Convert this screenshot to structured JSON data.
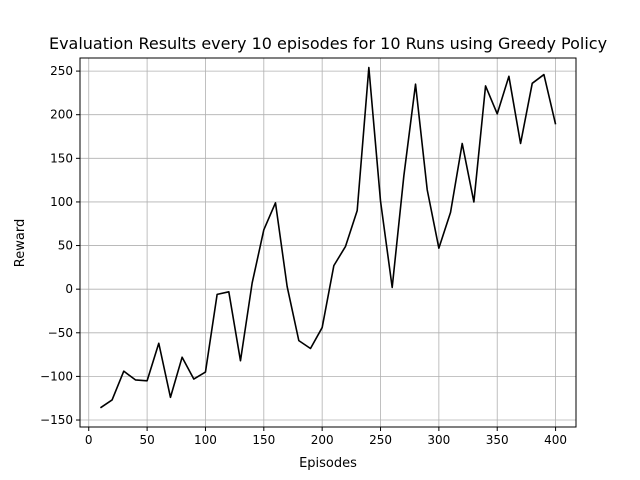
{
  "chart_data": {
    "type": "line",
    "title": "Evaluation Results every 10 episodes for 10 Runs using Greedy Policy",
    "xlabel": "Episodes",
    "ylabel": "Reward",
    "xlim": [
      -7.5,
      417.5
    ],
    "ylim": [
      -158,
      265
    ],
    "xticks": [
      0,
      50,
      100,
      150,
      200,
      250,
      300,
      350,
      400
    ],
    "yticks": [
      -150,
      -100,
      -50,
      0,
      50,
      100,
      150,
      200,
      250
    ],
    "grid": true,
    "series": [
      {
        "color": "#000000",
        "x": [
          10,
          20,
          30,
          40,
          50,
          60,
          70,
          80,
          90,
          100,
          110,
          120,
          130,
          140,
          150,
          160,
          170,
          180,
          190,
          200,
          210,
          220,
          230,
          240,
          250,
          260,
          270,
          280,
          290,
          300,
          310,
          320,
          330,
          340,
          350,
          360,
          370,
          380,
          390,
          400
        ],
        "y": [
          -136,
          -127,
          -94,
          -104,
          -105,
          -62,
          -124,
          -78,
          -103,
          -95,
          -6,
          -3,
          -82,
          7,
          68,
          99,
          3,
          -59,
          -68,
          -44,
          27,
          49,
          90,
          254,
          101,
          2,
          130,
          235,
          114,
          47,
          88,
          167,
          100,
          233,
          201,
          244,
          167,
          236,
          246,
          189
        ]
      }
    ]
  }
}
